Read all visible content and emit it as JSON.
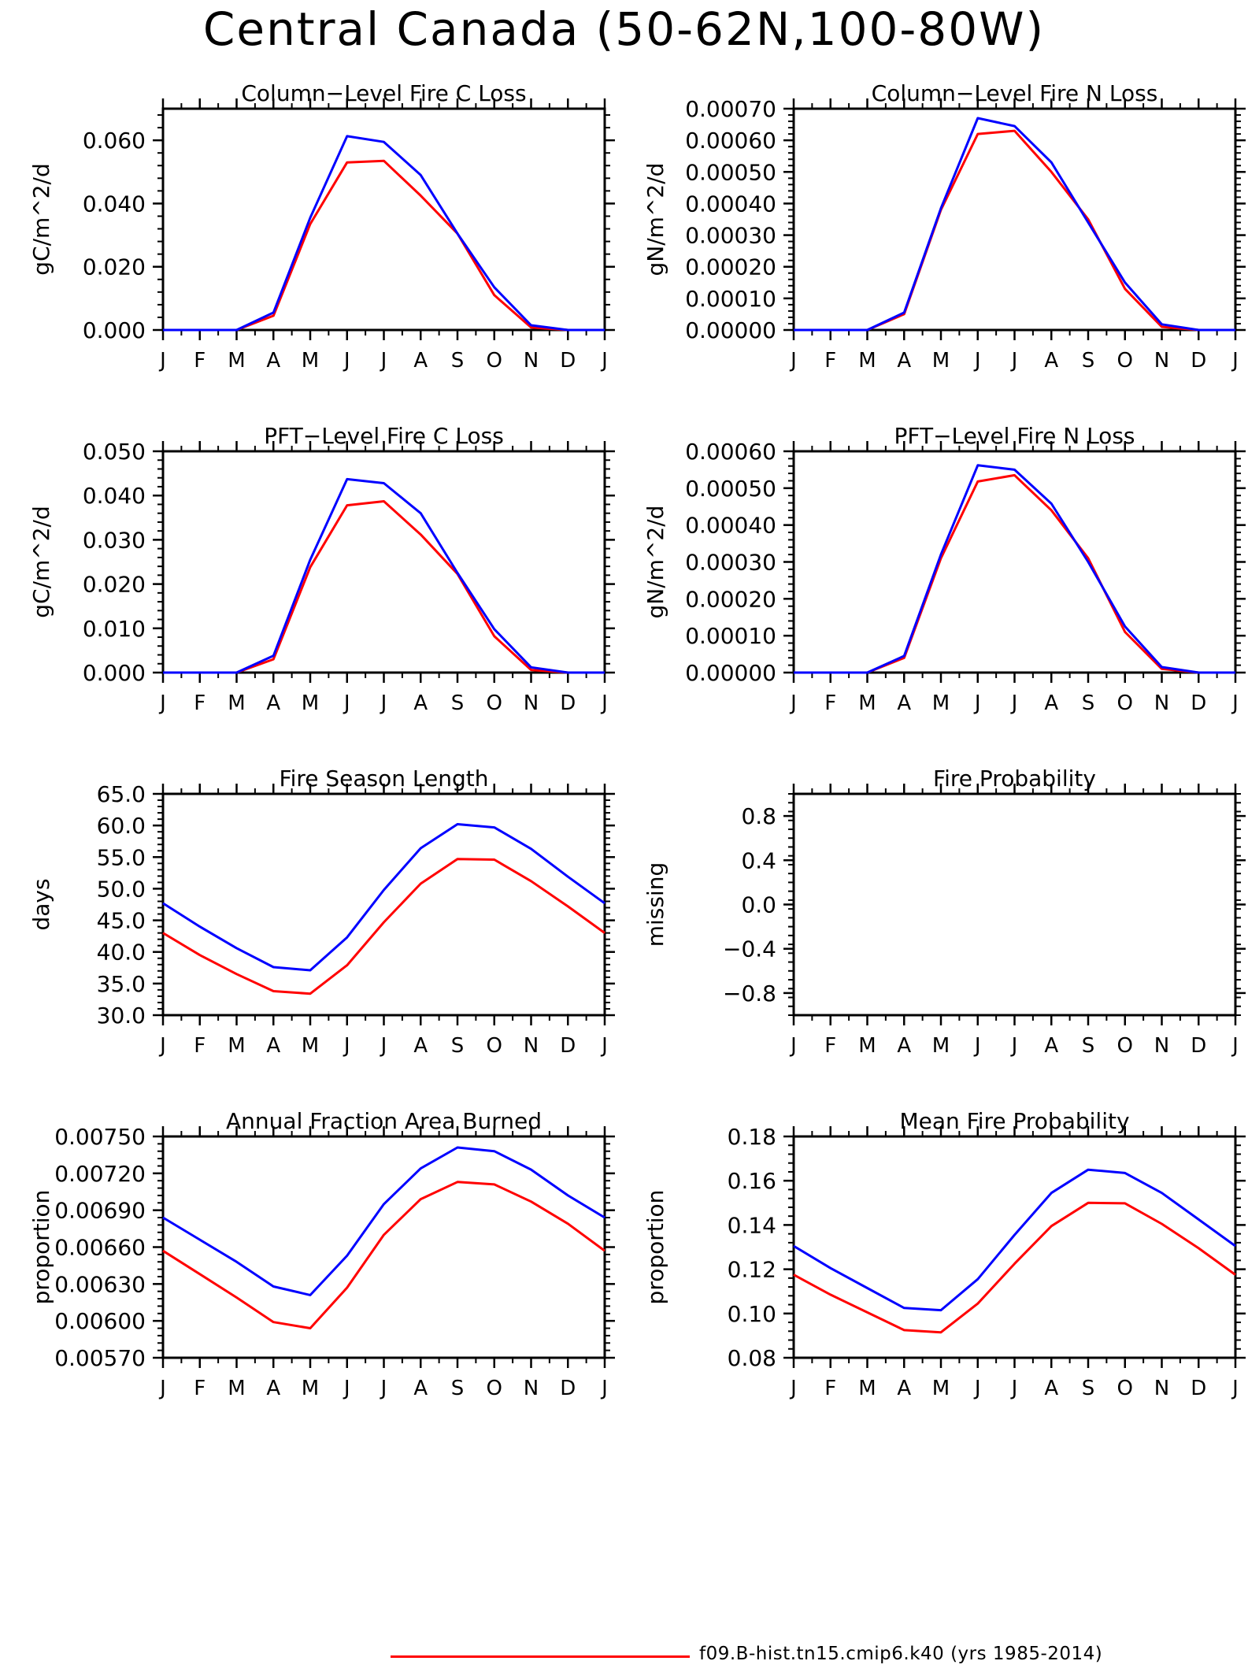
{
  "title": "Central Canada (50-62N,100-80W)",
  "legend": {
    "entries": [
      {
        "label": "f09.B-hist.tn15.cmip6.k40 (yrs 1985-2014)",
        "color": "#ff0000"
      }
    ]
  },
  "colors": {
    "series_red": "#ff0000",
    "series_blue": "#0000ff",
    "axes": "#000000"
  },
  "chart_data": [
    {
      "type": "line",
      "title": "Column-Level Fire C Loss",
      "ylabel": "gC/m^2/d",
      "xlabel": "",
      "categories": [
        "J",
        "F",
        "M",
        "A",
        "M",
        "J",
        "J",
        "A",
        "S",
        "O",
        "N",
        "D",
        "J"
      ],
      "ylim": [
        0,
        0.07
      ],
      "yticks": [
        0.0,
        0.02,
        0.04,
        0.06
      ],
      "ytick_labels": [
        "0.000",
        "0.020",
        "0.040",
        "0.060"
      ],
      "legend_position": "bottom",
      "series": [
        {
          "color": "#ff0000",
          "values": [
            0,
            0,
            0,
            0.0045,
            0.0335,
            0.053,
            0.0535,
            0.0425,
            0.0305,
            0.011,
            0.0008,
            0,
            0
          ]
        },
        {
          "color": "#0000ff",
          "values": [
            0,
            0,
            0,
            0.0055,
            0.0355,
            0.0613,
            0.0595,
            0.049,
            0.0305,
            0.0135,
            0.0015,
            0,
            0
          ]
        }
      ]
    },
    {
      "type": "line",
      "title": "Column-Level Fire N Loss",
      "ylabel": "gN/m^2/d",
      "xlabel": "",
      "categories": [
        "J",
        "F",
        "M",
        "A",
        "M",
        "J",
        "J",
        "A",
        "S",
        "O",
        "N",
        "D",
        "J"
      ],
      "ylim": [
        0,
        0.0007
      ],
      "yticks": [
        0,
        0.0001,
        0.0002,
        0.0003,
        0.0004,
        0.0005,
        0.0006,
        0.0007
      ],
      "ytick_labels": [
        "0.00000",
        "0.00010",
        "0.00020",
        "0.00030",
        "0.00040",
        "0.00050",
        "0.00060",
        "0.00070"
      ],
      "series": [
        {
          "color": "#ff0000",
          "values": [
            0,
            0,
            0,
            5e-05,
            0.00038,
            0.00062,
            0.00063,
            0.0005,
            0.00035,
            0.00013,
            1e-05,
            0,
            0
          ]
        },
        {
          "color": "#0000ff",
          "values": [
            0,
            0,
            0,
            5.5e-05,
            0.000385,
            0.00067,
            0.000645,
            0.00053,
            0.00034,
            0.00015,
            1.8e-05,
            0,
            0
          ]
        }
      ]
    },
    {
      "type": "line",
      "title": "PFT-Level Fire C Loss",
      "ylabel": "gC/m^2/d",
      "xlabel": "",
      "categories": [
        "J",
        "F",
        "M",
        "A",
        "M",
        "J",
        "J",
        "A",
        "S",
        "O",
        "N",
        "D",
        "J"
      ],
      "ylim": [
        0,
        0.05
      ],
      "yticks": [
        0,
        0.01,
        0.02,
        0.03,
        0.04,
        0.05
      ],
      "ytick_labels": [
        "0.000",
        "0.010",
        "0.020",
        "0.030",
        "0.040",
        "0.050"
      ],
      "series": [
        {
          "color": "#ff0000",
          "values": [
            0,
            0,
            0,
            0.003,
            0.0238,
            0.0378,
            0.0387,
            0.0312,
            0.0223,
            0.0082,
            0.0006,
            0,
            0
          ]
        },
        {
          "color": "#0000ff",
          "values": [
            0,
            0,
            0,
            0.0038,
            0.0255,
            0.0437,
            0.0428,
            0.036,
            0.0225,
            0.0098,
            0.0012,
            0,
            0
          ]
        }
      ]
    },
    {
      "type": "line",
      "title": "PFT-Level Fire N Loss",
      "ylabel": "gN/m^2/d",
      "xlabel": "",
      "categories": [
        "J",
        "F",
        "M",
        "A",
        "M",
        "J",
        "J",
        "A",
        "S",
        "O",
        "N",
        "D",
        "J"
      ],
      "ylim": [
        0,
        0.0006
      ],
      "yticks": [
        0,
        0.0001,
        0.0002,
        0.0003,
        0.0004,
        0.0005,
        0.0006
      ],
      "ytick_labels": [
        "0.00000",
        "0.00010",
        "0.00020",
        "0.00030",
        "0.00040",
        "0.00050",
        "0.00060"
      ],
      "series": [
        {
          "color": "#ff0000",
          "values": [
            0,
            0,
            0,
            4e-05,
            0.00031,
            0.000518,
            0.000535,
            0.00044,
            0.00031,
            0.00011,
            1e-05,
            0,
            0
          ]
        },
        {
          "color": "#0000ff",
          "values": [
            0,
            0,
            0,
            4.5e-05,
            0.00032,
            0.000562,
            0.00055,
            0.000458,
            0.0003,
            0.000125,
            1.5e-05,
            0,
            0
          ]
        }
      ]
    },
    {
      "type": "line",
      "title": "Fire Season Length",
      "ylabel": "days",
      "xlabel": "",
      "categories": [
        "J",
        "F",
        "M",
        "A",
        "M",
        "J",
        "J",
        "A",
        "S",
        "O",
        "N",
        "D",
        "J"
      ],
      "ylim": [
        30,
        65
      ],
      "yticks": [
        30,
        35,
        40,
        45,
        50,
        55,
        60,
        65
      ],
      "ytick_labels": [
        "30.0",
        "35.0",
        "40.0",
        "45.0",
        "50.0",
        "55.0",
        "60.0",
        "65.0"
      ],
      "series": [
        {
          "color": "#ff0000",
          "values": [
            43.0,
            39.5,
            36.5,
            33.8,
            33.4,
            37.9,
            44.7,
            50.8,
            54.7,
            54.6,
            51.2,
            47.2,
            43.0
          ]
        },
        {
          "color": "#0000ff",
          "values": [
            47.7,
            44.0,
            40.6,
            37.6,
            37.1,
            42.3,
            49.8,
            56.4,
            60.2,
            59.7,
            56.3,
            51.9,
            47.7
          ]
        }
      ]
    },
    {
      "type": "line",
      "title": "Fire Probability",
      "ylabel": "missing",
      "xlabel": "",
      "categories": [
        "J",
        "F",
        "M",
        "A",
        "M",
        "J",
        "J",
        "A",
        "S",
        "O",
        "N",
        "D",
        "J"
      ],
      "ylim": [
        -1.0,
        1.0
      ],
      "yticks": [
        -0.8,
        -0.4,
        0.0,
        0.4,
        0.8
      ],
      "ytick_labels": [
        "-0.8",
        "-0.4",
        "0.0",
        "0.4",
        "0.8"
      ],
      "series": []
    },
    {
      "type": "line",
      "title": "Annual Fraction Area Burned",
      "ylabel": "proportion",
      "xlabel": "",
      "categories": [
        "J",
        "F",
        "M",
        "A",
        "M",
        "J",
        "J",
        "A",
        "S",
        "O",
        "N",
        "D",
        "J"
      ],
      "ylim": [
        0.0057,
        0.0075
      ],
      "yticks": [
        0.0057,
        0.006,
        0.0063,
        0.0066,
        0.0069,
        0.0072,
        0.0075
      ],
      "ytick_labels": [
        "0.00570",
        "0.00600",
        "0.00630",
        "0.00660",
        "0.00690",
        "0.00720",
        "0.00750"
      ],
      "series": [
        {
          "color": "#ff0000",
          "values": [
            0.00657,
            0.00638,
            0.00619,
            0.00599,
            0.00594,
            0.00627,
            0.0067,
            0.00699,
            0.00713,
            0.00711,
            0.00697,
            0.00679,
            0.00657
          ]
        },
        {
          "color": "#0000ff",
          "values": [
            0.00684,
            0.00666,
            0.00648,
            0.00628,
            0.00621,
            0.00653,
            0.00695,
            0.00724,
            0.00741,
            0.00738,
            0.00723,
            0.00702,
            0.00684
          ]
        }
      ]
    },
    {
      "type": "line",
      "title": "Mean Fire Probability",
      "ylabel": "proportion",
      "xlabel": "",
      "categories": [
        "J",
        "F",
        "M",
        "A",
        "M",
        "J",
        "J",
        "A",
        "S",
        "O",
        "N",
        "D",
        "J"
      ],
      "ylim": [
        0.08,
        0.18
      ],
      "yticks": [
        0.08,
        0.1,
        0.12,
        0.14,
        0.16,
        0.18
      ],
      "ytick_labels": [
        "0.08",
        "0.10",
        "0.12",
        "0.14",
        "0.16",
        "0.18"
      ],
      "series": [
        {
          "color": "#ff0000",
          "values": [
            0.1175,
            0.1085,
            0.1005,
            0.0925,
            0.0915,
            0.1045,
            0.1225,
            0.1395,
            0.15,
            0.1498,
            0.1405,
            0.1295,
            0.1175
          ]
        },
        {
          "color": "#0000ff",
          "values": [
            0.1305,
            0.1205,
            0.1115,
            0.1025,
            0.1015,
            0.1155,
            0.1355,
            0.1545,
            0.165,
            0.1635,
            0.1545,
            0.1425,
            0.1305
          ]
        }
      ]
    }
  ]
}
